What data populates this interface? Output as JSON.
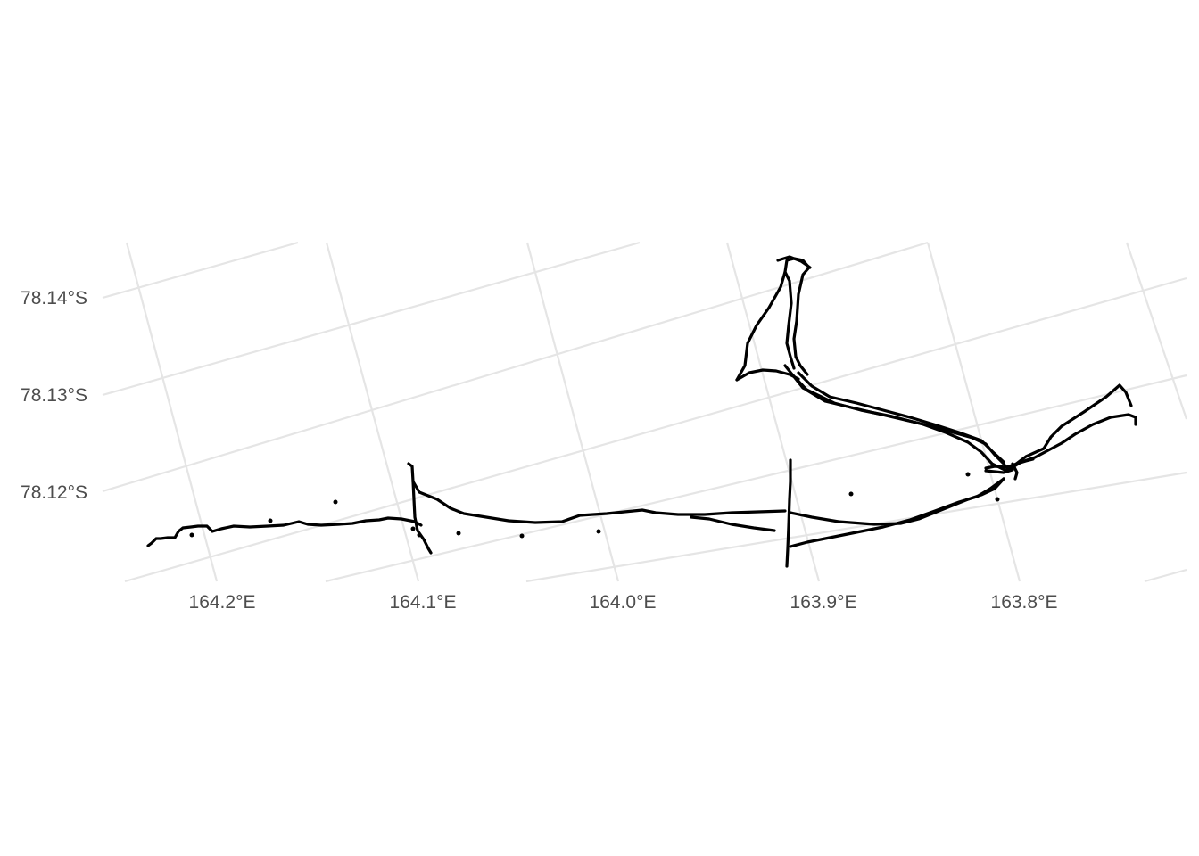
{
  "map": {
    "projection": "polar stereographic (rotated graticule)",
    "lon_axis": {
      "ticks": [
        {
          "value": 164.2,
          "label": "164.2°E"
        },
        {
          "value": 164.1,
          "label": "164.1°E"
        },
        {
          "value": 164.0,
          "label": "164.0°E"
        },
        {
          "value": 163.9,
          "label": "163.9°E"
        },
        {
          "value": 163.8,
          "label": "163.8°E"
        }
      ]
    },
    "lat_axis": {
      "ticks": [
        {
          "value": -78.14,
          "label": "78.14°S"
        },
        {
          "value": -78.13,
          "label": "78.13°S"
        },
        {
          "value": -78.12,
          "label": "78.12°S"
        }
      ]
    },
    "colors": {
      "background": "#ffffff",
      "grid": "#e5e5e5",
      "track": "#000000",
      "label": "#4d4d4d"
    },
    "track_style": "connected GPS points"
  }
}
